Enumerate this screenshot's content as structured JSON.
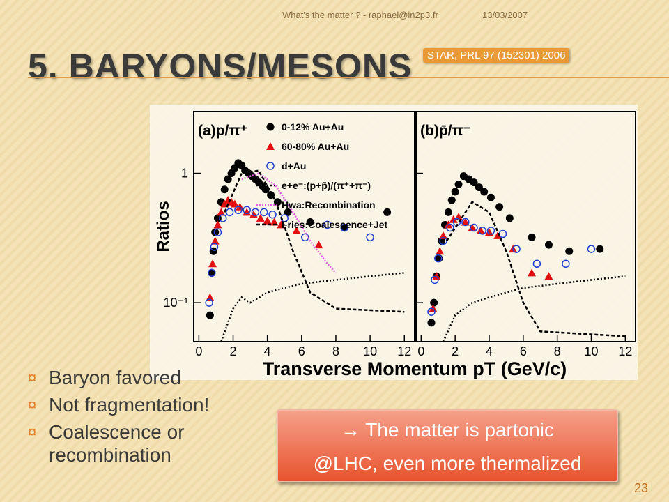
{
  "header": {
    "footer_left": "What's the matter ? - raphael@in2p3.fr",
    "date": "13/03/2007",
    "title": "5. BARYONS/MESONS",
    "reference": "STAR, PRL 97 (152301) 2006"
  },
  "figure": {
    "y_label": "Ratios",
    "x_label": "Transverse Momentum pT (GeV/c)",
    "ylim": [
      0.05,
      3
    ],
    "log_y": true,
    "yticks": [
      {
        "value": 0.1,
        "label": "10⁻¹"
      },
      1
    ],
    "panels": [
      {
        "title": "(a)p/π⁺",
        "xlim": [
          -0.3,
          12.6
        ],
        "xticks": [
          0,
          2,
          4,
          6,
          8,
          10,
          12
        ],
        "series": [
          {
            "name": "0-12% Au+Au",
            "type": "scatter",
            "marker": "filled-circle",
            "color": "#000000",
            "x": [
              0.65,
              0.75,
              0.85,
              0.95,
              1.1,
              1.3,
              1.5,
              1.7,
              1.9,
              2.1,
              2.3,
              2.5,
              2.7,
              2.9,
              3.1,
              3.3,
              3.5,
              3.7,
              3.9,
              4.2,
              4.6,
              5.2,
              6.5,
              8.5,
              11.0
            ],
            "values": [
              0.08,
              0.17,
              0.25,
              0.35,
              0.45,
              0.6,
              0.75,
              0.9,
              1.0,
              1.1,
              1.2,
              1.15,
              1.05,
              1.0,
              0.95,
              0.9,
              0.85,
              0.8,
              0.75,
              0.68,
              0.6,
              0.5,
              0.42,
              0.38,
              0.5
            ]
          },
          {
            "name": "60-80% Au+Au",
            "type": "scatter",
            "marker": "triangle",
            "color": "#e01010",
            "x": [
              0.65,
              0.8,
              0.95,
              1.1,
              1.3,
              1.5,
              1.7,
              1.9,
              2.1,
              2.4,
              2.8,
              3.2,
              3.6,
              4.0,
              4.4,
              4.8,
              5.7,
              7.0
            ],
            "values": [
              0.11,
              0.2,
              0.3,
              0.4,
              0.5,
              0.58,
              0.62,
              0.6,
              0.58,
              0.55,
              0.5,
              0.48,
              0.45,
              0.43,
              0.42,
              0.4,
              0.36,
              0.28
            ]
          },
          {
            "name": "d+Au",
            "type": "scatter",
            "marker": "open-circle",
            "color": "#2040d0",
            "x": [
              0.6,
              0.75,
              0.9,
              1.1,
              1.4,
              1.8,
              2.3,
              2.8,
              3.3,
              3.8,
              4.3,
              5.0,
              6.2,
              7.5,
              8.5,
              10.0
            ],
            "values": [
              0.1,
              0.17,
              0.27,
              0.35,
              0.45,
              0.5,
              0.52,
              0.52,
              0.5,
              0.5,
              0.48,
              0.45,
              0.32,
              0.4,
              0.38,
              0.32
            ]
          },
          {
            "name": "e+e⁻:(p+p̄)/(π⁺+π⁻)",
            "type": "line",
            "dash": "2,3",
            "color": "#000000",
            "x": [
              1.3,
              2,
              2.5,
              3,
              4,
              5,
              6,
              8,
              10,
              12
            ],
            "values": [
              0.05,
              0.09,
              0.11,
              0.1,
              0.12,
              0.13,
              0.14,
              0.15,
              0.16,
              0.17
            ]
          },
          {
            "name": "Hwa:Recombination",
            "type": "line",
            "dash": "2,2",
            "color": "#e060e0",
            "x": [
              2.5,
              3.5,
              4.5,
              5.5,
              6.5,
              7.5,
              8
            ],
            "values": [
              0.9,
              1.0,
              0.8,
              0.5,
              0.3,
              0.2,
              0.17
            ]
          },
          {
            "name": "Fries:Coalescence+Jet",
            "type": "line",
            "dash": "5,3",
            "color": "#000000",
            "x": [
              1.5,
              2.5,
              3.5,
              4.5,
              5.5,
              6.5,
              8,
              12
            ],
            "values": [
              0.5,
              1.0,
              1.05,
              0.6,
              0.25,
              0.12,
              0.09,
              0.085
            ]
          }
        ]
      },
      {
        "title": "(b)p̄/π⁻",
        "xlim": [
          -0.3,
          12.6
        ],
        "xticks": [
          0,
          2,
          4,
          6,
          8,
          10,
          12
        ],
        "series": [
          {
            "type": "scatter",
            "marker": "filled-circle",
            "color": "#000000",
            "x": [
              0.6,
              0.75,
              0.9,
              1.05,
              1.2,
              1.4,
              1.6,
              1.8,
              2.0,
              2.2,
              2.5,
              2.8,
              3.1,
              3.4,
              3.7,
              4.1,
              4.6,
              5.2,
              6.5,
              7.5,
              8.7,
              10.5
            ],
            "values": [
              0.07,
              0.1,
              0.16,
              0.22,
              0.3,
              0.4,
              0.5,
              0.62,
              0.72,
              0.82,
              0.95,
              0.9,
              0.85,
              0.78,
              0.72,
              0.65,
              0.55,
              0.45,
              0.32,
              0.28,
              0.25,
              0.26
            ]
          },
          {
            "type": "scatter",
            "marker": "triangle",
            "color": "#e01010",
            "x": [
              0.7,
              0.9,
              1.1,
              1.3,
              1.6,
              1.9,
              2.2,
              2.6,
              3.0,
              3.5,
              4.0,
              4.5,
              5.4,
              6.5,
              7.5
            ],
            "values": [
              0.09,
              0.16,
              0.25,
              0.33,
              0.4,
              0.44,
              0.46,
              0.42,
              0.38,
              0.36,
              0.35,
              0.33,
              0.26,
              0.17,
              0.16
            ]
          },
          {
            "type": "scatter",
            "marker": "open-circle",
            "color": "#2040d0",
            "x": [
              0.6,
              0.8,
              1.0,
              1.3,
              1.7,
              2.1,
              2.6,
              3.1,
              3.6,
              4.1,
              4.8,
              5.6,
              6.8,
              8.5,
              10.0
            ],
            "values": [
              0.085,
              0.15,
              0.22,
              0.3,
              0.38,
              0.42,
              0.42,
              0.38,
              0.36,
              0.36,
              0.34,
              0.26,
              0.2,
              0.2,
              0.26
            ]
          },
          {
            "type": "line",
            "dash": "2,3",
            "color": "#000000",
            "x": [
              1.3,
              2,
              3,
              4,
              5,
              6,
              8,
              10,
              12
            ],
            "values": [
              0.05,
              0.08,
              0.1,
              0.11,
              0.12,
              0.13,
              0.14,
              0.15,
              0.16
            ]
          },
          {
            "type": "line",
            "dash": "5,3",
            "color": "#000000",
            "x": [
              1.5,
              3.0,
              4.0,
              5.0,
              6.0,
              7,
              12
            ],
            "values": [
              0.3,
              0.6,
              0.5,
              0.25,
              0.1,
              0.06,
              0.055
            ]
          }
        ]
      }
    ]
  },
  "bullets": [
    "Baryon favored",
    "Not fragmentation!",
    "Coalescence or recombination"
  ],
  "callout": [
    "→ The matter is partonic",
    "@LHC, even more thermalized"
  ],
  "page_number": "23"
}
